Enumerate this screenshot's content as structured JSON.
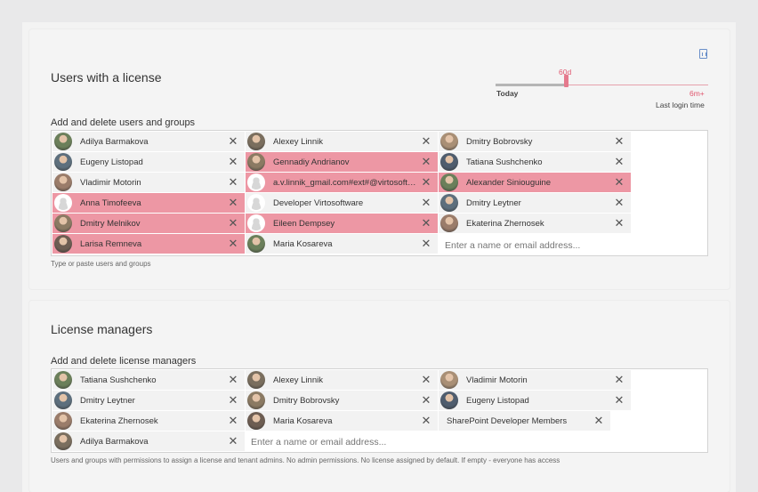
{
  "colors": {
    "warning_chip": "#ed97a4",
    "accent": "#e0556d",
    "chip_bg": "#f2f2f2"
  },
  "export_icon": "excel-export-icon",
  "license": {
    "title": "Users with a license",
    "slider": {
      "value_label": "60d",
      "min_label": "Today",
      "max_label": "6m+",
      "caption": "Last login time",
      "value_fraction": 0.33
    },
    "add_label": "Add and delete users and groups",
    "hint": "Type or paste users and groups",
    "placeholder": "Enter a name or email address...",
    "users": [
      {
        "name": "Adilya Barmakova",
        "avatar": "photo",
        "flag": false
      },
      {
        "name": "Alexey Linnik",
        "avatar": "photo",
        "flag": false
      },
      {
        "name": "Dmitry Bobrovsky",
        "avatar": "photo",
        "flag": false
      },
      {
        "name": "Eugeny Listopad",
        "avatar": "photo",
        "flag": false
      },
      {
        "name": "Gennadiy Andrianov",
        "avatar": "photo",
        "flag": true
      },
      {
        "name": "Tatiana Sushchenko",
        "avatar": "photo",
        "flag": false
      },
      {
        "name": "Vladimir Motorin",
        "avatar": "photo",
        "flag": false
      },
      {
        "name": "a.v.linnik_gmail.com#ext#@virtosoftware.onmicrosoft.com",
        "avatar": "default",
        "flag": true
      },
      {
        "name": "Alexander Siniouguine",
        "avatar": "photo",
        "flag": true
      },
      {
        "name": "Anna Timofeeva",
        "avatar": "default",
        "flag": true
      },
      {
        "name": "Developer Virtosoftware",
        "avatar": "default",
        "flag": false
      },
      {
        "name": "Dmitry Leytner",
        "avatar": "photo",
        "flag": false
      },
      {
        "name": "Dmitry Melnikov",
        "avatar": "photo",
        "flag": true
      },
      {
        "name": "Eileen Dempsey",
        "avatar": "default",
        "flag": true
      },
      {
        "name": "Ekaterina Zhernosek",
        "avatar": "photo",
        "flag": false
      },
      {
        "name": "Larisa Remneva",
        "avatar": "photo",
        "flag": true
      },
      {
        "name": "Maria Kosareva",
        "avatar": "photo",
        "flag": false
      }
    ]
  },
  "managers": {
    "title": "License managers",
    "add_label": "Add and delete license managers",
    "hint": "Users and groups with permissions to assign a license and tenant admins. No admin permissions. No license assigned by default. If empty - everyone has access",
    "placeholder": "Enter a name or email address...",
    "users": [
      {
        "name": "Tatiana Sushchenko",
        "avatar": "photo"
      },
      {
        "name": "Alexey Linnik",
        "avatar": "photo"
      },
      {
        "name": "Vladimir Motorin",
        "avatar": "photo"
      },
      {
        "name": "Dmitry Leytner",
        "avatar": "photo"
      },
      {
        "name": "Dmitry Bobrovsky",
        "avatar": "photo"
      },
      {
        "name": "Eugeny Listopad",
        "avatar": "photo"
      },
      {
        "name": "Ekaterina Zhernosek",
        "avatar": "photo"
      },
      {
        "name": "Maria Kosareva",
        "avatar": "photo"
      },
      {
        "name": "SharePoint Developer Members",
        "avatar": "none"
      },
      {
        "name": "Adilya Barmakova",
        "avatar": "photo"
      }
    ]
  }
}
